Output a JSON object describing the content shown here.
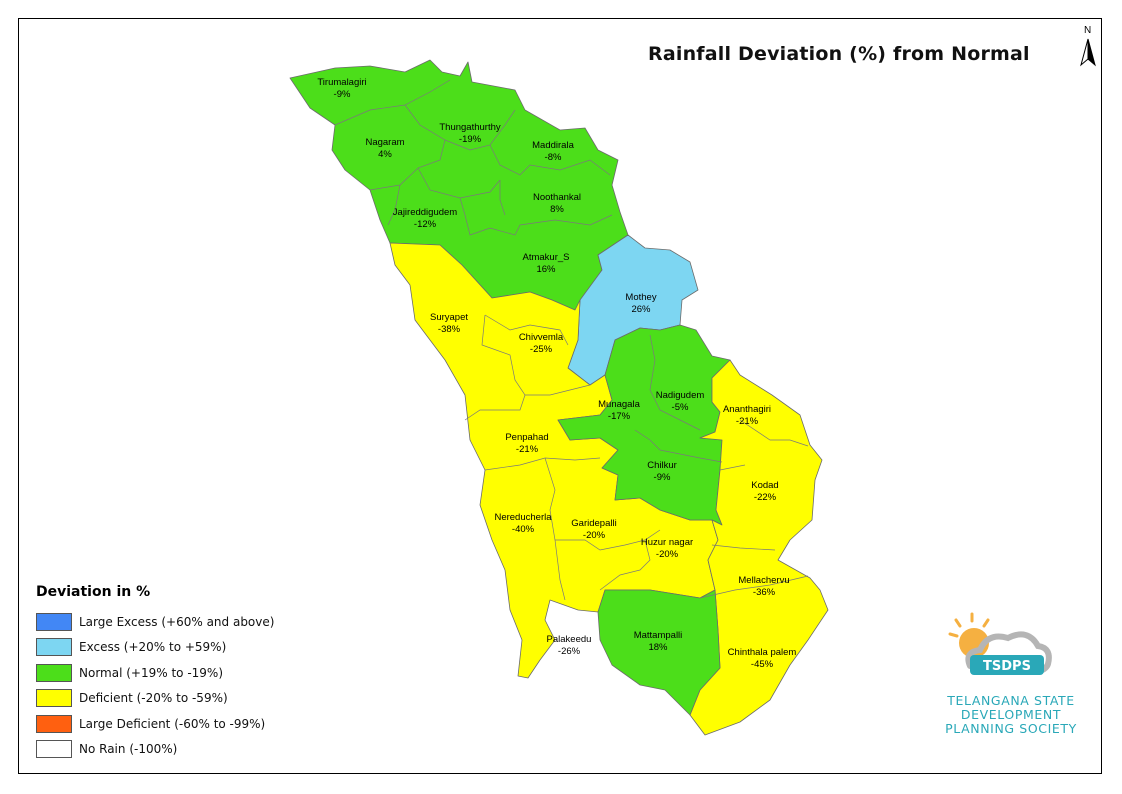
{
  "title": "Rainfall Deviation (%) from Normal",
  "north_label": "N",
  "legend": {
    "title": "Deviation in %",
    "items": [
      {
        "label": "Large Excess (+60% and above)",
        "color": "#4287f5"
      },
      {
        "label": "Excess (+20% to +59%)",
        "color": "#7dd6f2"
      },
      {
        "label": "Normal (+19% to -19%)",
        "color": "#4cde1a"
      },
      {
        "label": "Deficient (-20% to -59%)",
        "color": "#ffff00"
      },
      {
        "label": "Large Deficient (-60% to -99%)",
        "color": "#ff6010"
      },
      {
        "label": "No Rain (-100%)",
        "color": "#ffffff"
      }
    ]
  },
  "mandals": [
    {
      "name": "Tirumalagiri",
      "value": "-9%",
      "category": "Normal"
    },
    {
      "name": "Nagaram",
      "value": "4%",
      "category": "Normal"
    },
    {
      "name": "Thungathurthy",
      "value": "-19%",
      "category": "Normal"
    },
    {
      "name": "Maddirala",
      "value": "-8%",
      "category": "Normal"
    },
    {
      "name": "Noothankal",
      "value": "8%",
      "category": "Normal"
    },
    {
      "name": "Jajireddigudem",
      "value": "-12%",
      "category": "Normal"
    },
    {
      "name": "Atmakur_S",
      "value": "16%",
      "category": "Normal"
    },
    {
      "name": "Mothey",
      "value": "26%",
      "category": "Excess"
    },
    {
      "name": "Suryapet",
      "value": "-38%",
      "category": "Deficient"
    },
    {
      "name": "Chivvemla",
      "value": "-25%",
      "category": "Deficient"
    },
    {
      "name": "Munagala",
      "value": "-17%",
      "category": "Normal"
    },
    {
      "name": "Nadigudem",
      "value": "-5%",
      "category": "Normal"
    },
    {
      "name": "Ananthagiri",
      "value": "-21%",
      "category": "Deficient"
    },
    {
      "name": "Penpahad",
      "value": "-21%",
      "category": "Deficient"
    },
    {
      "name": "Chilkur",
      "value": "-9%",
      "category": "Normal"
    },
    {
      "name": "Kodad",
      "value": "-22%",
      "category": "Deficient"
    },
    {
      "name": "Nereducherla",
      "value": "-40%",
      "category": "Deficient"
    },
    {
      "name": "Garidepalli",
      "value": "-20%",
      "category": "Deficient"
    },
    {
      "name": "Huzur nagar",
      "value": "-20%",
      "category": "Deficient"
    },
    {
      "name": "Mellachervu",
      "value": "-36%",
      "category": "Deficient"
    },
    {
      "name": "Palakeedu",
      "value": "-26%",
      "category": "Deficient"
    },
    {
      "name": "Mattampalli",
      "value": "18%",
      "category": "Normal"
    },
    {
      "name": "Chinthala palem",
      "value": "-45%",
      "category": "Deficient"
    }
  ],
  "logo": {
    "acronym": "TSDPS",
    "line1": "TELANGANA STATE",
    "line2": "DEVELOPMENT",
    "line3": "PLANNING SOCIETY",
    "color": "#2aa8b8",
    "sun_color": "#f5b041"
  }
}
